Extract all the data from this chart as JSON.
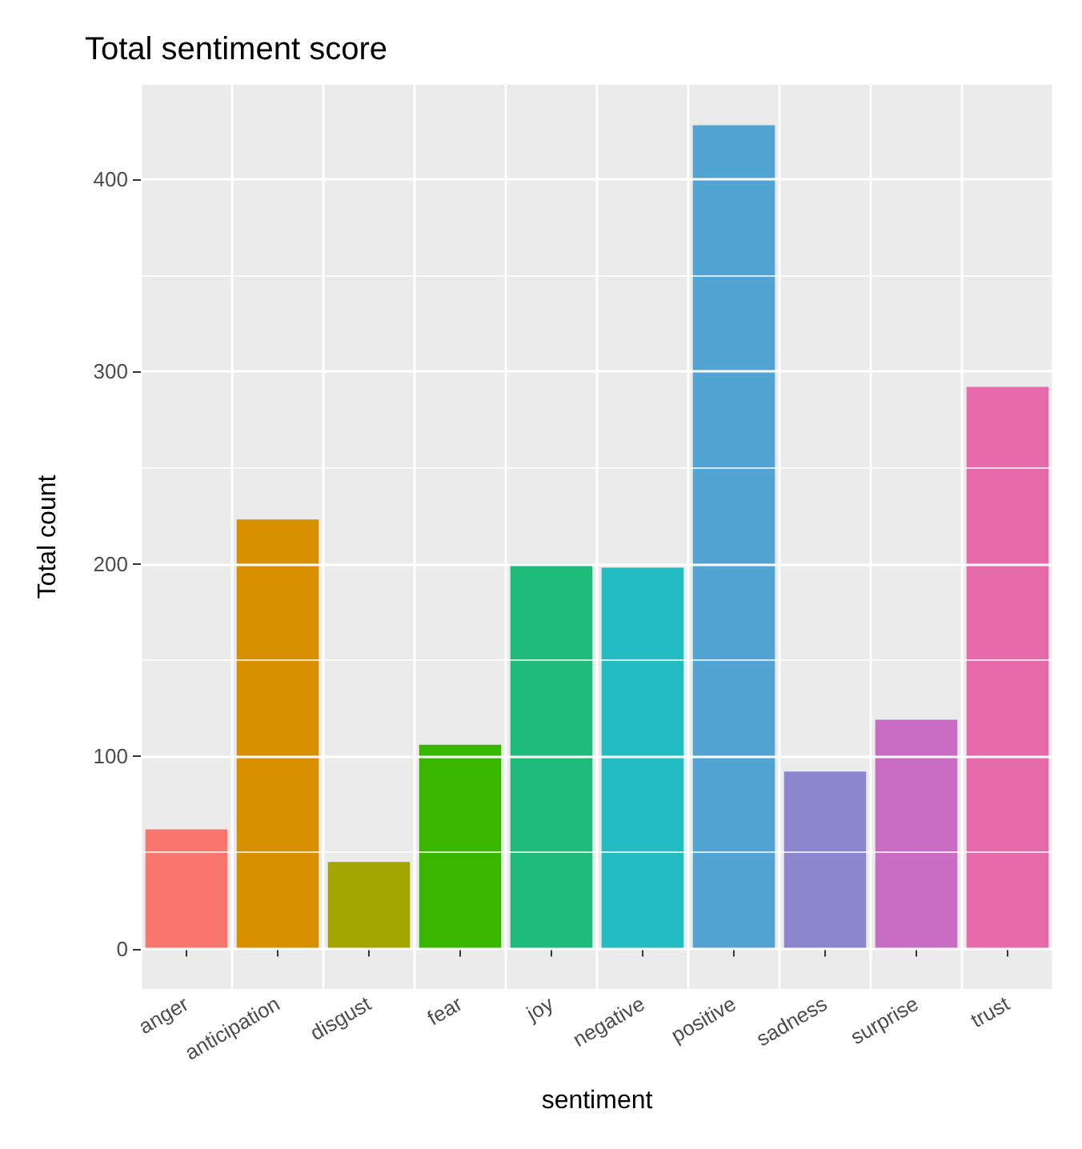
{
  "chart_data": {
    "type": "bar",
    "title": "Total sentiment score",
    "xlabel": "sentiment",
    "ylabel": "Total count",
    "categories": [
      "anger",
      "anticipation",
      "disgust",
      "fear",
      "joy",
      "negative",
      "positive",
      "sadness",
      "surprise",
      "trust"
    ],
    "values": [
      62,
      223,
      45,
      106,
      200,
      198,
      428,
      92,
      119,
      292
    ],
    "colors": [
      "#f8766d",
      "#d89000",
      "#a3a500",
      "#39b600",
      "#1fbb7a",
      "#22bcc2",
      "#52a5d3",
      "#8d87cf",
      "#c86dc3",
      "#e66aaa"
    ],
    "ylim": [
      -21,
      449
    ],
    "yticks": [
      0,
      100,
      200,
      300,
      400
    ],
    "grid": true
  }
}
